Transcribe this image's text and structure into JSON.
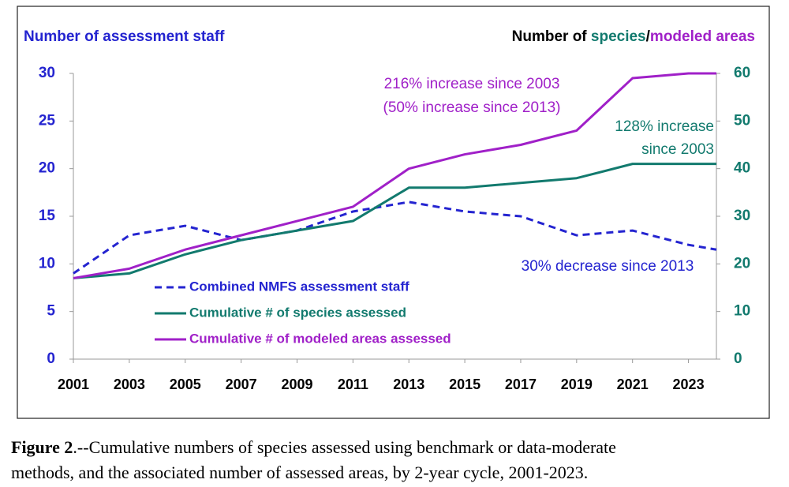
{
  "chart_data": {
    "type": "line",
    "y_title": "Number of assessment staff",
    "y2_title": [
      {
        "text": "Number of ",
        "color": "#000000"
      },
      {
        "text": "species",
        "color": "#127a6e"
      },
      {
        "text": "/",
        "color": "#000000"
      },
      {
        "text": "modeled areas",
        "color": "#a020c8"
      }
    ],
    "x": [
      2001,
      2003,
      2005,
      2007,
      2009,
      2011,
      2013,
      2015,
      2017,
      2019,
      2021,
      2023,
      2024
    ],
    "xlim": [
      2001,
      2024
    ],
    "xticks": [
      2001,
      2003,
      2005,
      2007,
      2009,
      2011,
      2013,
      2015,
      2017,
      2019,
      2021,
      2023
    ],
    "ylim": [
      0,
      30
    ],
    "yticks": [
      0,
      5,
      10,
      15,
      20,
      25,
      30
    ],
    "y2lim": [
      0,
      60
    ],
    "y2ticks": [
      0,
      10,
      20,
      30,
      40,
      50,
      60
    ],
    "grid": false,
    "legend": "lower-left",
    "series": [
      {
        "name": "Combined NMFS assessment staff",
        "color": "#2424d0",
        "dashed": true,
        "values": [
          9,
          13,
          14,
          12.5,
          13.5,
          15.5,
          16.5,
          15.5,
          15,
          13,
          13.5,
          12,
          11.5
        ]
      },
      {
        "name": "Cumulative # of species assessed",
        "color": "#127a6e",
        "axis": "y2",
        "values": [
          17,
          18,
          22,
          25,
          27,
          29,
          36,
          36,
          37,
          38,
          41,
          41,
          41
        ]
      },
      {
        "name": "Cumulative # of modeled areas assessed",
        "color": "#a020c8",
        "axis": "y2",
        "values": [
          17,
          19,
          23,
          26,
          29,
          32,
          40,
          43,
          45,
          48,
          59,
          60,
          60
        ]
      }
    ],
    "annotations": [
      {
        "text": "216% increase since 2003",
        "color": "#a020c8"
      },
      {
        "text": "(50% increase since 2013)",
        "color": "#a020c8"
      },
      {
        "text": "128% increase",
        "color": "#127a6e"
      },
      {
        "text": "since 2003",
        "color": "#127a6e"
      },
      {
        "text": "30% decrease since 2013",
        "color": "#2424d0"
      }
    ]
  },
  "caption": {
    "label": "Figure 2",
    "text": ".--Cumulative numbers of species assessed using benchmark or data-moderate",
    "text2": "methods, and the associated number of assessed areas, by 2-year cycle, 2001-2023."
  }
}
